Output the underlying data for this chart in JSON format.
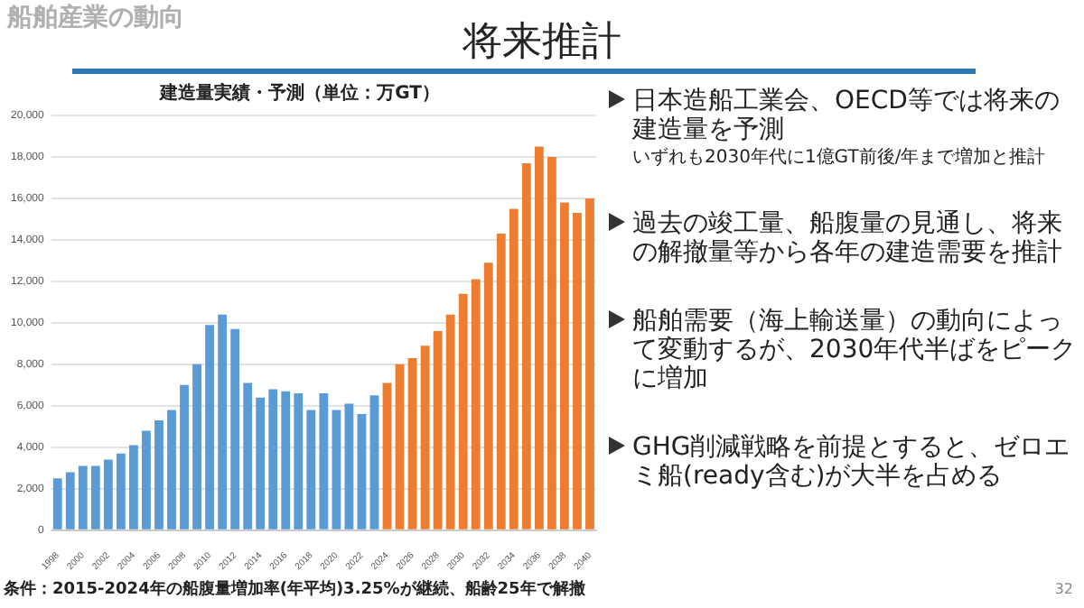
{
  "chart_data": {
    "type": "bar",
    "title": "建造量実績・予測（単位：万GT）",
    "categories": [
      "1998",
      null,
      "2000",
      null,
      "2002",
      null,
      "2004",
      null,
      "2006",
      null,
      "2008",
      null,
      "2010",
      null,
      "2012",
      null,
      "2014",
      null,
      "2016",
      null,
      "2018",
      null,
      "2020",
      null,
      "2022",
      null,
      "2024",
      null,
      "2026",
      null,
      "2028",
      null,
      "2030",
      null,
      "2032",
      null,
      "2034",
      null,
      "2036",
      null,
      "2038",
      null,
      "2040"
    ],
    "values": [
      2500,
      2800,
      3100,
      3100,
      3400,
      3700,
      4100,
      4800,
      5300,
      5800,
      7000,
      8000,
      9900,
      10400,
      9700,
      7100,
      6400,
      6800,
      6700,
      6600,
      5800,
      6600,
      5800,
      6100,
      5600,
      6500,
      7100,
      8000,
      8300,
      8900,
      9600,
      10400,
      11400,
      12100,
      12900,
      14300,
      15500,
      17700,
      18500,
      18000,
      15800,
      15300,
      16000
    ],
    "colors": [
      "#5b9bd5",
      "#5b9bd5",
      "#5b9bd5",
      "#5b9bd5",
      "#5b9bd5",
      "#5b9bd5",
      "#5b9bd5",
      "#5b9bd5",
      "#5b9bd5",
      "#5b9bd5",
      "#5b9bd5",
      "#5b9bd5",
      "#5b9bd5",
      "#5b9bd5",
      "#5b9bd5",
      "#5b9bd5",
      "#5b9bd5",
      "#5b9bd5",
      "#5b9bd5",
      "#5b9bd5",
      "#5b9bd5",
      "#5b9bd5",
      "#5b9bd5",
      "#5b9bd5",
      "#5b9bd5",
      "#5b9bd5",
      "#ed7d31",
      "#ed7d31",
      "#ed7d31",
      "#ed7d31",
      "#ed7d31",
      "#ed7d31",
      "#ed7d31",
      "#ed7d31",
      "#ed7d31",
      "#ed7d31",
      "#ed7d31",
      "#ed7d31",
      "#ed7d31",
      "#ed7d31",
      "#ed7d31",
      "#ed7d31",
      "#ed7d31"
    ],
    "ylim": [
      0,
      20000
    ],
    "yticks": [
      {
        "value": 0,
        "label": "0"
      },
      {
        "value": 2000,
        "label": "2,000"
      },
      {
        "value": 4000,
        "label": "4,000"
      },
      {
        "value": 6000,
        "label": "6,000"
      },
      {
        "value": 8000,
        "label": "8,000"
      },
      {
        "value": 10000,
        "label": "10,000"
      },
      {
        "value": 12000,
        "label": "12,000"
      },
      {
        "value": 14000,
        "label": "14,000"
      },
      {
        "value": 16000,
        "label": "16,000"
      },
      {
        "value": 18000,
        "label": "18,000"
      },
      {
        "value": 20000,
        "label": "20,000"
      }
    ],
    "grid": "y",
    "legend": false,
    "annotations": [
      "船舶産業の動向",
      "将来推計",
      "日本造船工業会、OECD等では将来の建造量を予測",
      "いずれも2030年代に1億GT前後/年まで増加と推計",
      "過去の竣工量、船腹量の見通し、将来の解撤量等から各年の建造需要を推計",
      "船舶需要（海上輸送量）の動向によって変動するが、2030年代半ばをピークに増加",
      "GHG削減戦略を前提とすると、ゼロエミ船(ready含む)が大半を占める",
      "条件：2015-2024年の船腹量増加率(年平均)3.25%が継続、船齢25年で解撤",
      "32"
    ]
  }
}
